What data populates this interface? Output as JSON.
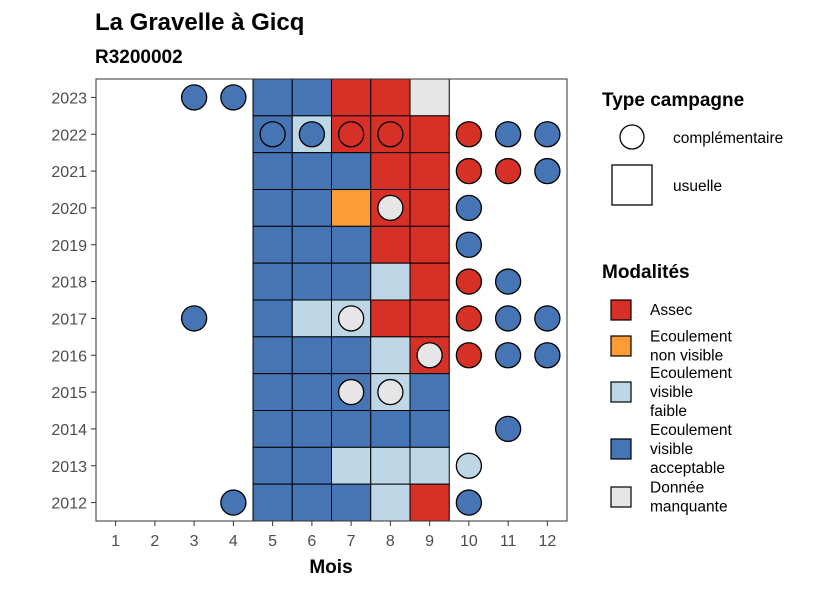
{
  "chart_data": {
    "type": "heatmap",
    "title": "La Gravelle à Gicq",
    "subtitle": "R3200002",
    "xlabel": "Mois",
    "ylabel": "",
    "x_ticks": [
      "1",
      "2",
      "3",
      "4",
      "5",
      "6",
      "7",
      "8",
      "9",
      "10",
      "11",
      "12"
    ],
    "y_ticks": [
      "2012",
      "2013",
      "2014",
      "2015",
      "2016",
      "2017",
      "2018",
      "2019",
      "2020",
      "2021",
      "2022",
      "2023"
    ],
    "grid": false,
    "legend_position": "right",
    "colors": {
      "Assec": "#d73027",
      "Ecoulement non visible": "#fd9c35",
      "Ecoulement visible faible": "#bdd7e7",
      "Ecoulement visible acceptable": "#4575b4",
      "Donnée manquante": "#e6e6e6"
    },
    "legend_type": {
      "title": "Type campagne",
      "items": [
        {
          "label": "complémentaire",
          "shape": "circle"
        },
        {
          "label": "usuelle",
          "shape": "square"
        }
      ]
    },
    "legend_modalites": {
      "title": "Modalités",
      "items": [
        {
          "key": "Assec",
          "lines": [
            "Assec"
          ]
        },
        {
          "key": "Ecoulement non visible",
          "lines": [
            "Ecoulement",
            "non visible"
          ]
        },
        {
          "key": "Ecoulement visible faible",
          "lines": [
            "Ecoulement",
            "visible",
            "faible"
          ]
        },
        {
          "key": "Ecoulement visible acceptable",
          "lines": [
            "Ecoulement",
            "visible",
            "acceptable"
          ]
        },
        {
          "key": "Donnée manquante",
          "lines": [
            "Donnée",
            "manquante"
          ]
        }
      ]
    },
    "usuelle": [
      {
        "year": 2023,
        "values": {
          "5": "Ecoulement visible acceptable",
          "6": "Ecoulement visible acceptable",
          "7": "Assec",
          "8": "Assec",
          "9": "Donnée manquante"
        }
      },
      {
        "year": 2022,
        "values": {
          "5": "Ecoulement visible acceptable",
          "6": "Ecoulement visible faible",
          "7": "Assec",
          "8": "Assec",
          "9": "Assec"
        }
      },
      {
        "year": 2021,
        "values": {
          "5": "Ecoulement visible acceptable",
          "6": "Ecoulement visible acceptable",
          "7": "Ecoulement visible acceptable",
          "8": "Assec",
          "9": "Assec"
        }
      },
      {
        "year": 2020,
        "values": {
          "5": "Ecoulement visible acceptable",
          "6": "Ecoulement visible acceptable",
          "7": "Ecoulement non visible",
          "8": "Assec",
          "9": "Assec"
        }
      },
      {
        "year": 2019,
        "values": {
          "5": "Ecoulement visible acceptable",
          "6": "Ecoulement visible acceptable",
          "7": "Ecoulement visible acceptable",
          "8": "Assec",
          "9": "Assec"
        }
      },
      {
        "year": 2018,
        "values": {
          "5": "Ecoulement visible acceptable",
          "6": "Ecoulement visible acceptable",
          "7": "Ecoulement visible acceptable",
          "8": "Ecoulement visible faible",
          "9": "Assec"
        }
      },
      {
        "year": 2017,
        "values": {
          "5": "Ecoulement visible acceptable",
          "6": "Ecoulement visible faible",
          "7": "Ecoulement visible faible",
          "8": "Assec",
          "9": "Assec"
        }
      },
      {
        "year": 2016,
        "values": {
          "5": "Ecoulement visible acceptable",
          "6": "Ecoulement visible acceptable",
          "7": "Ecoulement visible acceptable",
          "8": "Ecoulement visible faible",
          "9": "Assec"
        }
      },
      {
        "year": 2015,
        "values": {
          "5": "Ecoulement visible acceptable",
          "6": "Ecoulement visible acceptable",
          "7": "Ecoulement visible acceptable",
          "8": "Ecoulement visible faible",
          "9": "Ecoulement visible acceptable"
        }
      },
      {
        "year": 2014,
        "values": {
          "5": "Ecoulement visible acceptable",
          "6": "Ecoulement visible acceptable",
          "7": "Ecoulement visible acceptable",
          "8": "Ecoulement visible acceptable",
          "9": "Ecoulement visible acceptable"
        }
      },
      {
        "year": 2013,
        "values": {
          "5": "Ecoulement visible acceptable",
          "6": "Ecoulement visible acceptable",
          "7": "Ecoulement visible faible",
          "8": "Ecoulement visible faible",
          "9": "Ecoulement visible faible"
        }
      },
      {
        "year": 2012,
        "values": {
          "5": "Ecoulement visible acceptable",
          "6": "Ecoulement visible acceptable",
          "7": "Ecoulement visible acceptable",
          "8": "Ecoulement visible faible",
          "9": "Assec"
        }
      }
    ],
    "complementaire": [
      {
        "year": 2023,
        "month": 3,
        "value": "Ecoulement visible acceptable"
      },
      {
        "year": 2023,
        "month": 4,
        "value": "Ecoulement visible acceptable"
      },
      {
        "year": 2022,
        "month": 5,
        "value": "Ecoulement visible acceptable"
      },
      {
        "year": 2022,
        "month": 6,
        "value": "Ecoulement visible acceptable"
      },
      {
        "year": 2022,
        "month": 7,
        "value": "Assec"
      },
      {
        "year": 2022,
        "month": 8,
        "value": "Assec"
      },
      {
        "year": 2022,
        "month": 10,
        "value": "Assec"
      },
      {
        "year": 2022,
        "month": 11,
        "value": "Ecoulement visible acceptable"
      },
      {
        "year": 2022,
        "month": 12,
        "value": "Ecoulement visible acceptable"
      },
      {
        "year": 2021,
        "month": 10,
        "value": "Assec"
      },
      {
        "year": 2021,
        "month": 11,
        "value": "Assec"
      },
      {
        "year": 2021,
        "month": 12,
        "value": "Ecoulement visible acceptable"
      },
      {
        "year": 2020,
        "month": 8,
        "value": "Donnée manquante"
      },
      {
        "year": 2020,
        "month": 10,
        "value": "Ecoulement visible acceptable"
      },
      {
        "year": 2019,
        "month": 10,
        "value": "Ecoulement visible acceptable"
      },
      {
        "year": 2018,
        "month": 10,
        "value": "Assec"
      },
      {
        "year": 2018,
        "month": 11,
        "value": "Ecoulement visible acceptable"
      },
      {
        "year": 2017,
        "month": 3,
        "value": "Ecoulement visible acceptable"
      },
      {
        "year": 2017,
        "month": 7,
        "value": "Donnée manquante"
      },
      {
        "year": 2017,
        "month": 10,
        "value": "Assec"
      },
      {
        "year": 2017,
        "month": 11,
        "value": "Ecoulement visible acceptable"
      },
      {
        "year": 2017,
        "month": 12,
        "value": "Ecoulement visible acceptable"
      },
      {
        "year": 2016,
        "month": 9,
        "value": "Donnée manquante"
      },
      {
        "year": 2016,
        "month": 10,
        "value": "Assec"
      },
      {
        "year": 2016,
        "month": 11,
        "value": "Ecoulement visible acceptable"
      },
      {
        "year": 2016,
        "month": 12,
        "value": "Ecoulement visible acceptable"
      },
      {
        "year": 2015,
        "month": 7,
        "value": "Donnée manquante"
      },
      {
        "year": 2015,
        "month": 8,
        "value": "Donnée manquante"
      },
      {
        "year": 2014,
        "month": 11,
        "value": "Ecoulement visible acceptable"
      },
      {
        "year": 2013,
        "month": 10,
        "value": "Ecoulement visible faible"
      },
      {
        "year": 2012,
        "month": 4,
        "value": "Ecoulement visible acceptable"
      },
      {
        "year": 2012,
        "month": 10,
        "value": "Ecoulement visible acceptable"
      }
    ]
  }
}
